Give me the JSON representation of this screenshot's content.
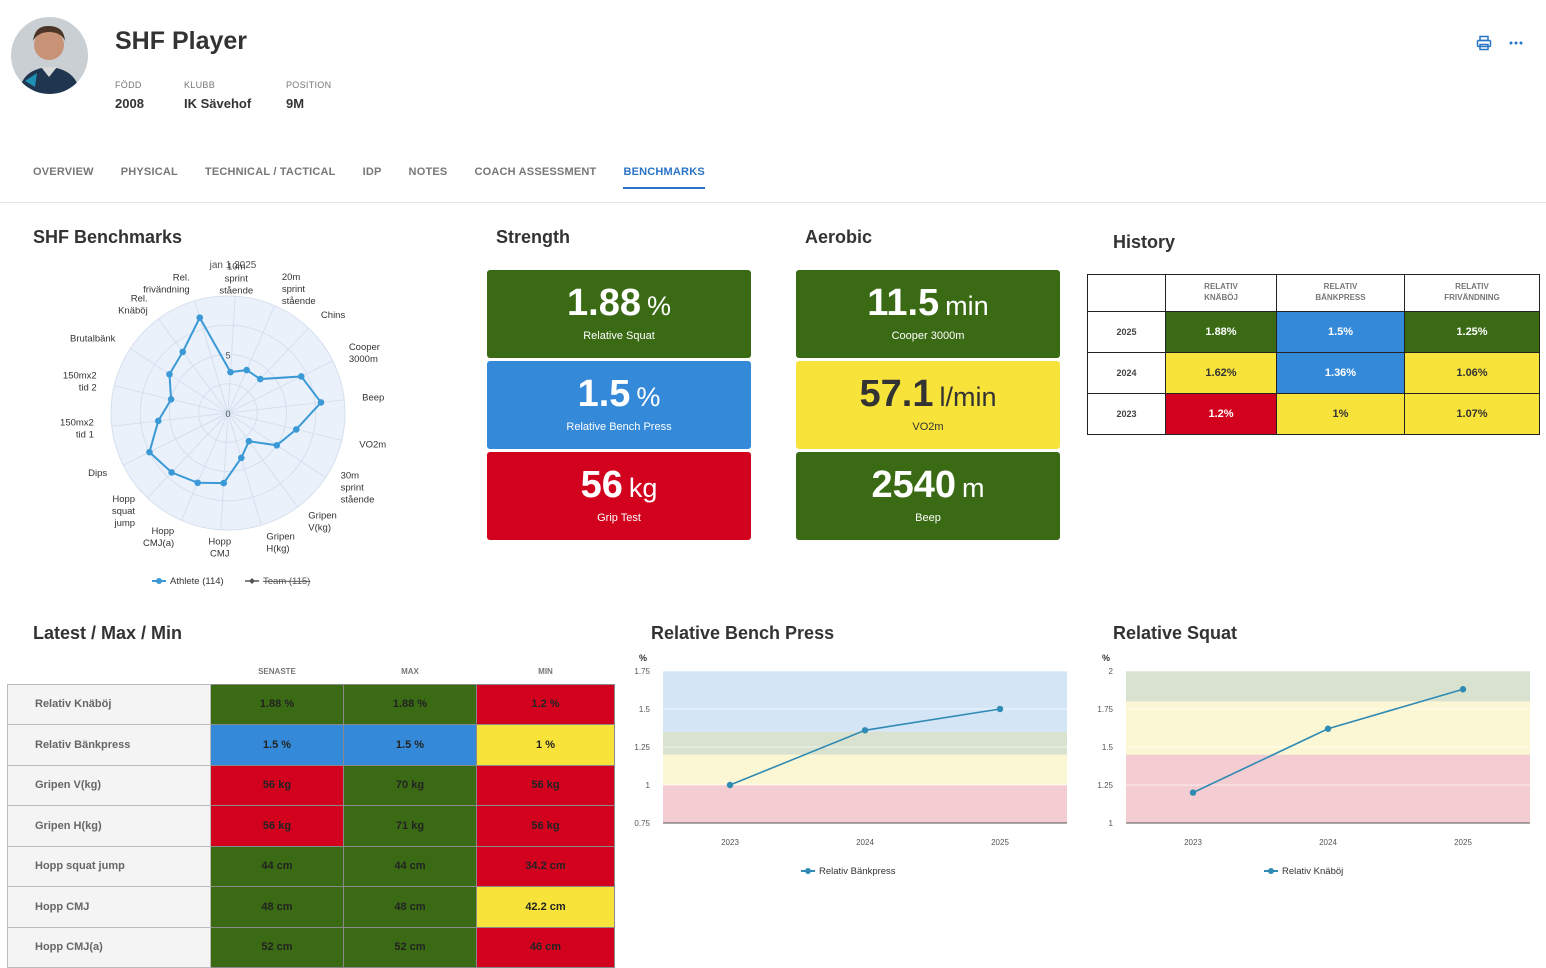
{
  "player": {
    "name": "SHF Player",
    "born_label": "FÖDD",
    "born": "2008",
    "club_label": "KLUBB",
    "club": "IK Sävehof",
    "position_label": "POSITION",
    "position": "9M"
  },
  "header_icons": {
    "print": "printer-icon",
    "more": "more-icon"
  },
  "tabs": [
    {
      "label": "OVERVIEW"
    },
    {
      "label": "PHYSICAL"
    },
    {
      "label": "TECHNICAL / TACTICAL"
    },
    {
      "label": "IDP"
    },
    {
      "label": "NOTES"
    },
    {
      "label": "COACH ASSESSMENT"
    },
    {
      "label": "BENCHMARKS",
      "active": true
    }
  ],
  "sections": {
    "benchmarks": "SHF Benchmarks",
    "strength": "Strength",
    "aerobic": "Aerobic",
    "history": "History",
    "lmm": "Latest / Max / Min",
    "bench": "Relative Bench Press",
    "squat": "Relative Squat"
  },
  "colors": {
    "green": "#3a6b14",
    "blue": "#348ad9",
    "red": "#d2021f",
    "yellow": "#f8e33a",
    "accent": "#2a74c5"
  },
  "strength": [
    {
      "value": "1.88",
      "unit": "%",
      "label": "Relative Squat",
      "color": "green"
    },
    {
      "value": "1.5",
      "unit": "%",
      "label": "Relative Bench Press",
      "color": "blue"
    },
    {
      "value": "56",
      "unit": "kg",
      "label": "Grip Test",
      "color": "red"
    }
  ],
  "aerobic": [
    {
      "value": "11.5",
      "unit": "min",
      "label": "Cooper 3000m",
      "color": "green"
    },
    {
      "value": "57.1",
      "unit": "l/min",
      "label": "VO2m",
      "color": "yellow"
    },
    {
      "value": "2540",
      "unit": "m",
      "label": "Beep",
      "color": "green"
    }
  ],
  "history": {
    "headers": [
      "RELATIV KNÄBÖJ",
      "RELATIV BÄNKPRESS",
      "RELATIV FRIVÄNDNING"
    ],
    "rows": [
      {
        "year": "2025",
        "cells": [
          {
            "v": "1.88%",
            "c": "green"
          },
          {
            "v": "1.5%",
            "c": "blue"
          },
          {
            "v": "1.25%",
            "c": "green"
          }
        ]
      },
      {
        "year": "2024",
        "cells": [
          {
            "v": "1.62%",
            "c": "yellow"
          },
          {
            "v": "1.36%",
            "c": "blue"
          },
          {
            "v": "1.06%",
            "c": "yellow"
          }
        ]
      },
      {
        "year": "2023",
        "cells": [
          {
            "v": "1.2%",
            "c": "red"
          },
          {
            "v": "1%",
            "c": "yellow"
          },
          {
            "v": "1.07%",
            "c": "yellow"
          }
        ]
      }
    ]
  },
  "lmm": {
    "headers": [
      "SENASTE",
      "MAX",
      "MIN"
    ],
    "rows": [
      {
        "name": "Relativ Knäböj",
        "cells": [
          {
            "v": "1.88 %",
            "c": "green"
          },
          {
            "v": "1.88 %",
            "c": "green"
          },
          {
            "v": "1.2 %",
            "c": "red"
          }
        ]
      },
      {
        "name": "Relativ Bänkpress",
        "cells": [
          {
            "v": "1.5 %",
            "c": "blue"
          },
          {
            "v": "1.5 %",
            "c": "blue"
          },
          {
            "v": "1 %",
            "c": "yellow"
          }
        ]
      },
      {
        "name": "Gripen V(kg)",
        "cells": [
          {
            "v": "56 kg",
            "c": "red"
          },
          {
            "v": "70 kg",
            "c": "green"
          },
          {
            "v": "56 kg",
            "c": "red"
          }
        ]
      },
      {
        "name": "Gripen H(kg)",
        "cells": [
          {
            "v": "56 kg",
            "c": "red"
          },
          {
            "v": "71 kg",
            "c": "green"
          },
          {
            "v": "56 kg",
            "c": "red"
          }
        ]
      },
      {
        "name": "Hopp squat jump",
        "cells": [
          {
            "v": "44 cm",
            "c": "green"
          },
          {
            "v": "44 cm",
            "c": "green"
          },
          {
            "v": "34.2 cm",
            "c": "red"
          }
        ]
      },
      {
        "name": "Hopp CMJ",
        "cells": [
          {
            "v": "48 cm",
            "c": "green"
          },
          {
            "v": "48 cm",
            "c": "green"
          },
          {
            "v": "42.2 cm",
            "c": "yellow"
          }
        ]
      },
      {
        "name": "Hopp CMJ(a)",
        "cells": [
          {
            "v": "52 cm",
            "c": "green"
          },
          {
            "v": "52 cm",
            "c": "green"
          },
          {
            "v": "46 cm",
            "c": "red"
          }
        ]
      }
    ]
  },
  "chart_data": [
    {
      "type": "radar",
      "title": "jan 1 2025",
      "axes": [
        "10m sprint stående",
        "20m sprint stående",
        "Chins",
        "Cooper 3000m",
        "Beep",
        "VO2m",
        "30m sprint stående",
        "Gripen V(kg)",
        "Gripen H(kg)",
        "Hopp CMJ",
        "Hopp CMJ(a)",
        "Hopp squat jump",
        "Dips",
        "150mx2 tid 1",
        "150mx2 tid 2",
        "Brutalbänk",
        "Rel. Knäböj",
        "Rel. frivändning"
      ],
      "rlim": [
        0,
        10
      ],
      "tick_labels": [
        "0",
        "5"
      ],
      "series": [
        {
          "name": "Athlete (114)",
          "values": [
            3.5,
            4,
            4,
            7,
            8,
            6,
            5,
            3,
            4,
            6,
            6.5,
            7,
            7.5,
            6,
            5,
            6,
            6.5,
            8.5
          ]
        },
        {
          "name": "Team (115)",
          "values": [],
          "hidden": true
        }
      ]
    },
    {
      "type": "line",
      "title": "Relative Bench Press",
      "ylabel": "%",
      "x": [
        "2023",
        "2024",
        "2025"
      ],
      "ylim": [
        0.75,
        1.75
      ],
      "yticks": [
        "0.75",
        "1",
        "1.25",
        "1.5",
        "1.75"
      ],
      "bands": [
        {
          "from": 0.75,
          "to": 1.0,
          "color": "red"
        },
        {
          "from": 1.0,
          "to": 1.2,
          "color": "yellow"
        },
        {
          "from": 1.2,
          "to": 1.35,
          "color": "green"
        },
        {
          "from": 1.35,
          "to": 1.75,
          "color": "blue"
        }
      ],
      "series": [
        {
          "name": "Relativ Bänkpress",
          "values": [
            1.0,
            1.36,
            1.5
          ]
        }
      ]
    },
    {
      "type": "line",
      "title": "Relative Squat",
      "ylabel": "%",
      "x": [
        "2023",
        "2024",
        "2025"
      ],
      "ylim": [
        1,
        2
      ],
      "yticks": [
        "1",
        "1.25",
        "1.5",
        "1.75",
        "2"
      ],
      "bands": [
        {
          "from": 1.0,
          "to": 1.45,
          "color": "red"
        },
        {
          "from": 1.45,
          "to": 1.8,
          "color": "yellow"
        },
        {
          "from": 1.8,
          "to": 2.0,
          "color": "green"
        }
      ],
      "series": [
        {
          "name": "Relativ Knäböj",
          "values": [
            1.2,
            1.62,
            1.88
          ]
        }
      ]
    }
  ]
}
